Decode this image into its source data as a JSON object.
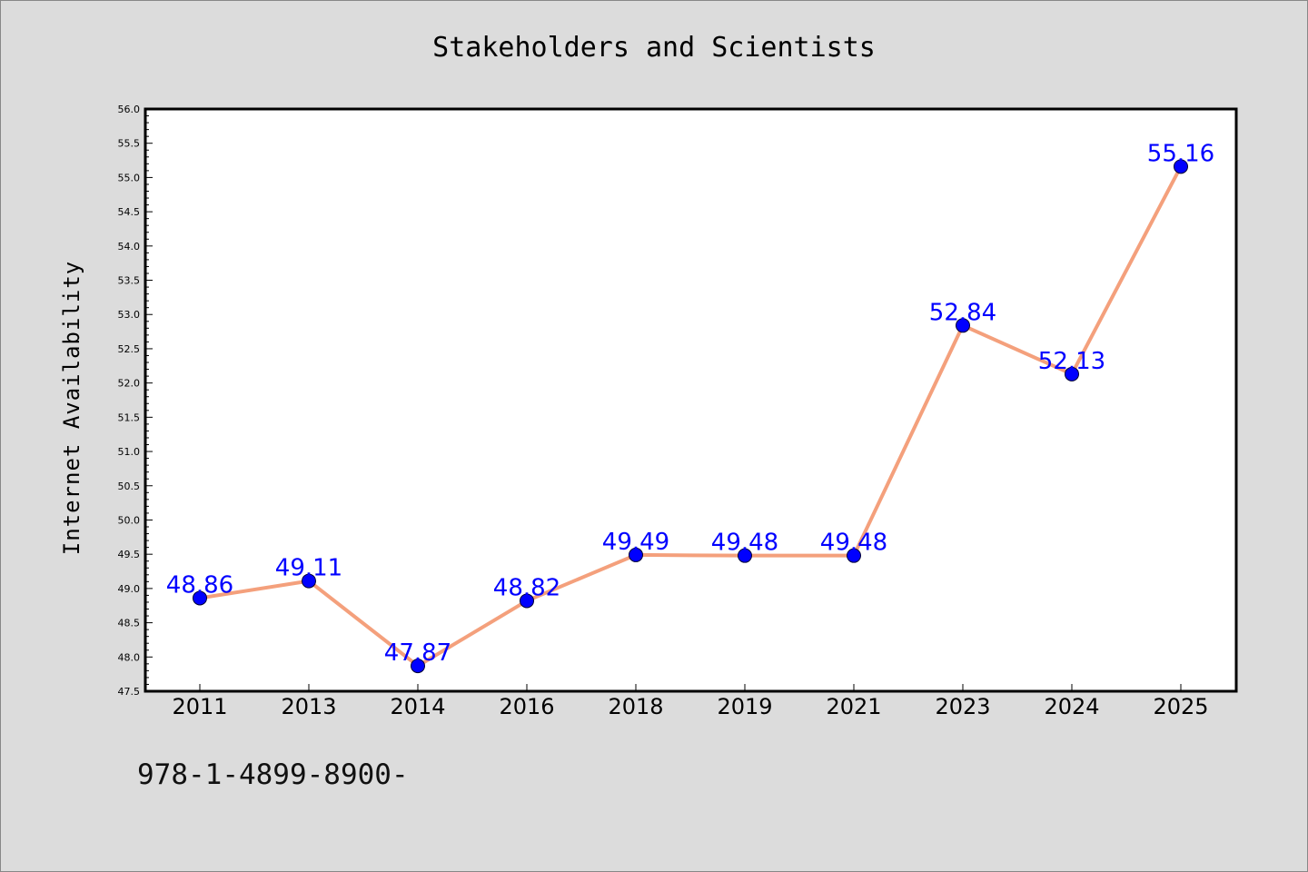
{
  "chart_data": {
    "type": "line",
    "title": "Stakeholders and Scientists",
    "xlabel": "",
    "ylabel": "Internet Availability",
    "categories": [
      "2011",
      "2013",
      "2014",
      "2016",
      "2018",
      "2019",
      "2021",
      "2023",
      "2024",
      "2025"
    ],
    "series": [
      {
        "values": [
          48.86,
          49.11,
          47.87,
          48.82,
          49.49,
          49.48,
          49.48,
          52.84,
          52.13,
          55.16
        ],
        "line_color": "#f4a07c",
        "marker_color": "#0000ff"
      }
    ],
    "data_labels": [
      "48.86",
      "49.11",
      "47.87",
      "48.82",
      "49.49",
      "49.48",
      "49.48",
      "52.84",
      "52.13",
      "55.16"
    ],
    "ylim": [
      47.5,
      56.0
    ],
    "yticks": [
      "47.5",
      "48.0",
      "48.5",
      "49.0",
      "49.5",
      "50.0",
      "50.5",
      "51.0",
      "51.5",
      "52.0",
      "52.5",
      "53.0",
      "53.5",
      "54.0",
      "54.5",
      "55.0",
      "55.5",
      "56.0"
    ],
    "grid": false,
    "legend": "none"
  },
  "footnote": "978-1-4899-8900-"
}
